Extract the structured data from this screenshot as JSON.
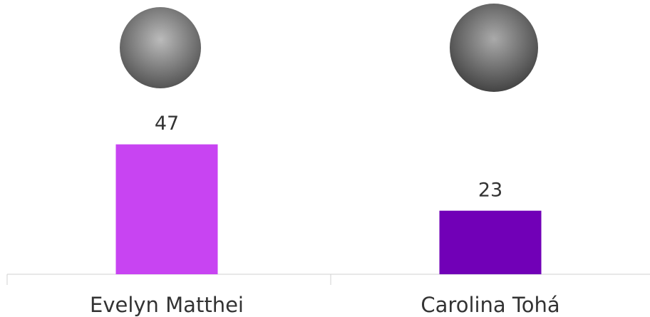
{
  "chart_data": {
    "type": "bar",
    "categories": [
      "Evelyn Matthei",
      "Carolina Tohá"
    ],
    "values": [
      47,
      23
    ],
    "colors": [
      "#c844f2",
      "#7100b7"
    ]
  }
}
